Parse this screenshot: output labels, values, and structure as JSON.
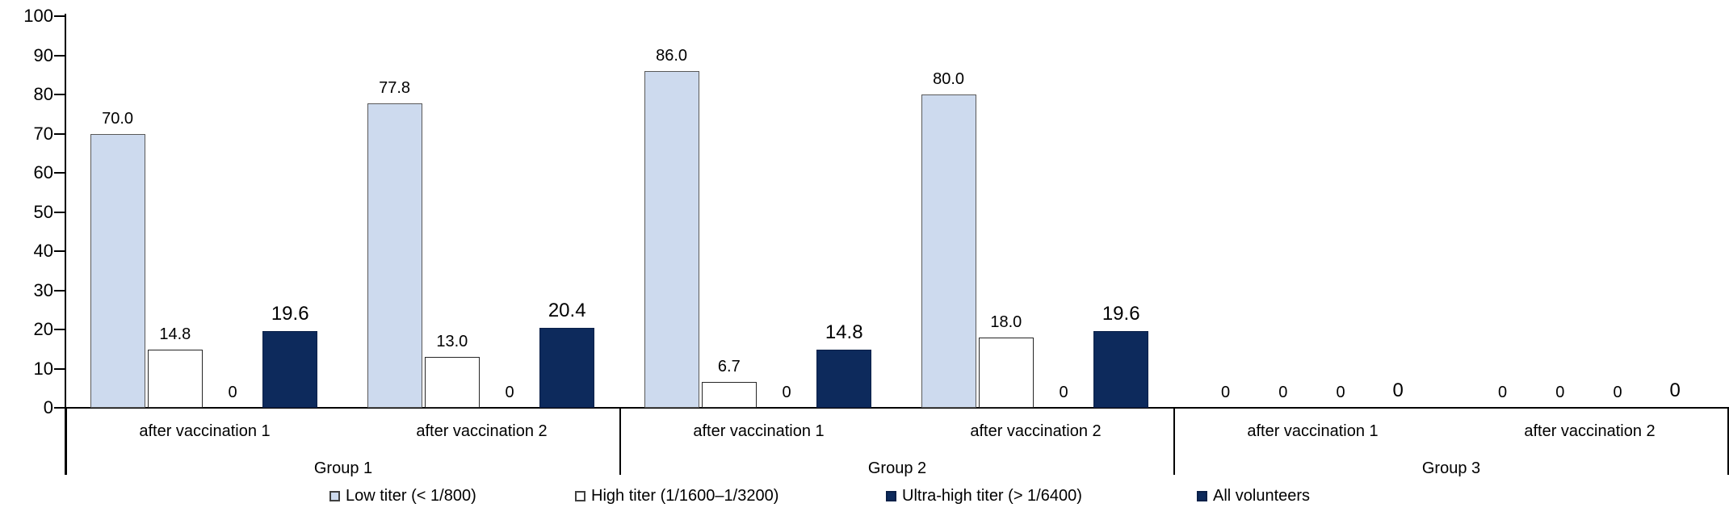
{
  "chart_data": {
    "type": "bar",
    "title": "",
    "xlabel": "",
    "ylabel": "",
    "ylim": [
      0,
      100
    ],
    "grid": false,
    "legend_position": "bottom",
    "axis": {
      "yticks": [
        0,
        10,
        20,
        30,
        40,
        50,
        60,
        70,
        80,
        90,
        100
      ]
    },
    "series": [
      {
        "name": "Low titer (< 1/800)",
        "fill": "#CDDAEE",
        "border": "#595959"
      },
      {
        "name": "High titer (1/1600–1/3200)",
        "fill": "#FFFFFF",
        "border": "#262626"
      },
      {
        "name": "Ultra-high titer (> 1/6400)",
        "fill": "#0D2A5C",
        "border": "#0A2048"
      },
      {
        "name": "All volunteers",
        "fill": "#0D2A5C",
        "border": "#0A2048"
      }
    ],
    "groups": [
      {
        "label": "Group 1",
        "subgroups": [
          {
            "label": "after vaccination 1",
            "values": [
              70.0,
              14.8,
              0,
              19.6
            ],
            "labels": [
              "70.0",
              "14.8",
              "0",
              "19.6"
            ]
          },
          {
            "label": "after vaccination 2",
            "values": [
              77.8,
              13.0,
              0,
              20.4
            ],
            "labels": [
              "77.8",
              "13.0",
              "0",
              "20.4"
            ]
          }
        ]
      },
      {
        "label": "Group 2",
        "subgroups": [
          {
            "label": "after vaccination 1",
            "values": [
              86.0,
              6.7,
              0,
              14.8
            ],
            "labels": [
              "86.0",
              "6.7",
              "0",
              "14.8"
            ]
          },
          {
            "label": "after vaccination 2",
            "values": [
              80.0,
              18.0,
              0,
              19.6
            ],
            "labels": [
              "80.0",
              "18.0",
              "0",
              "19.6"
            ]
          }
        ]
      },
      {
        "label": "Group 3",
        "subgroups": [
          {
            "label": "after vaccination 1",
            "values": [
              0,
              0,
              0,
              0
            ],
            "labels": [
              "0",
              "0",
              "0",
              "0"
            ]
          },
          {
            "label": "after vaccination 2",
            "values": [
              0,
              0,
              0,
              0
            ],
            "labels": [
              "0",
              "0",
              "0",
              "0"
            ]
          }
        ]
      }
    ]
  }
}
